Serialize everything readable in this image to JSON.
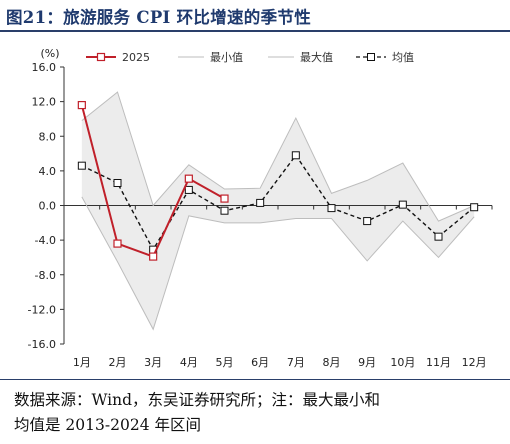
{
  "title": "图21：旅游服务 CPI 环比增速的季节性",
  "source_line1": "数据来源：Wind，东吴证券研究所；注：最大最小和",
  "source_line2": "均值是 2013-2024 年区间",
  "chart_data": {
    "type": "line",
    "unit": "(%)",
    "categories": [
      "1月",
      "2月",
      "3月",
      "4月",
      "5月",
      "6月",
      "7月",
      "8月",
      "9月",
      "10月",
      "11月",
      "12月"
    ],
    "ylim": [
      -16.0,
      16.0
    ],
    "yticks": [
      16.0,
      12.0,
      8.0,
      4.0,
      0.0,
      -4.0,
      -8.0,
      -12.0,
      -16.0
    ],
    "ytick_labels": [
      "16.0",
      "12.0",
      "8.0",
      "4.0",
      "0.0",
      "-4.0",
      "-8.0",
      "-12.0",
      "-16.0"
    ],
    "legend": {
      "placement": "top",
      "labels": [
        "2025",
        "最小值",
        "最大值",
        "均值"
      ]
    },
    "series": [
      {
        "name": "2025",
        "color": "#c0202a",
        "values": [
          11.6,
          -4.4,
          -5.9,
          3.1,
          0.8,
          null,
          null,
          null,
          null,
          null,
          null,
          null
        ]
      },
      {
        "name": "最小值",
        "color": "#bdbdbd",
        "values": [
          1.0,
          -6.5,
          -14.3,
          -1.2,
          -2.0,
          -2.0,
          -1.5,
          -1.5,
          -6.4,
          -1.8,
          -6.0,
          -1.3
        ]
      },
      {
        "name": "最大值",
        "color": "#bdbdbd",
        "values": [
          9.8,
          13.1,
          0.0,
          4.7,
          1.9,
          2.0,
          10.1,
          1.4,
          2.9,
          4.9,
          -1.8,
          0.0
        ]
      },
      {
        "name": "均值",
        "color": "#111111",
        "values": [
          4.6,
          2.6,
          -5.1,
          1.8,
          -0.6,
          0.3,
          5.8,
          -0.3,
          -1.8,
          0.1,
          -3.6,
          -0.2
        ]
      }
    ],
    "band_fill": "#ececec"
  }
}
